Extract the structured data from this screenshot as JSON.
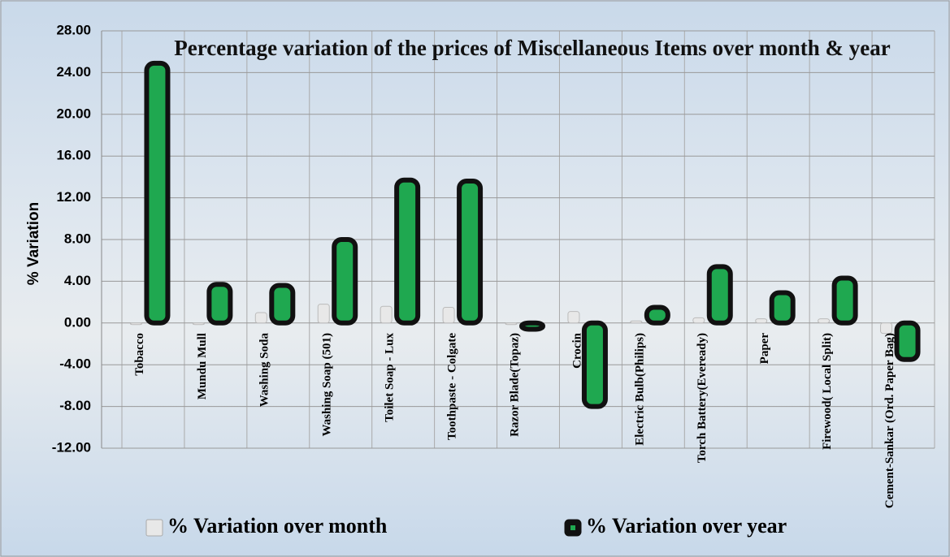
{
  "chart_data": {
    "type": "bar",
    "title": "Percentage variation of the prices of Miscellaneous Items over month & year",
    "y_label": "% Variation",
    "categories": [
      "Tobacco",
      "Mundu Mull",
      "Washing Soda",
      "Washing Soap (501)",
      "Toilet Soap - Lux",
      "Toothpaste - Colgate",
      "Razor Blade(Topaz)",
      "Crocin",
      "Electric Bulb(Philips)",
      "Torch Battery(Eveready)",
      "Paper",
      "Firewood( Local Split)",
      "Cement-Sankar (Ord. Paper Bag)"
    ],
    "series": [
      {
        "name": "% Variation over month",
        "color": "#e8e8e8",
        "values": [
          0,
          0,
          1.0,
          1.8,
          1.6,
          1.5,
          0,
          1.1,
          0.2,
          0.5,
          0.4,
          0.4,
          -1.0
        ]
      },
      {
        "name": "% Variation over year",
        "color": "#1fa850",
        "values": [
          24.9,
          3.7,
          3.6,
          8.0,
          13.7,
          13.6,
          -0.6,
          -8.0,
          1.5,
          5.4,
          2.9,
          4.3,
          -3.5
        ]
      }
    ],
    "ylim": [
      -12,
      28
    ],
    "yticks": [
      {
        "value": -12,
        "label": "-12.00"
      },
      {
        "value": -8,
        "label": "-8.00"
      },
      {
        "value": -4,
        "label": "-4.00"
      },
      {
        "value": 0,
        "label": "0.00"
      },
      {
        "value": 4,
        "label": "4.00"
      },
      {
        "value": 8,
        "label": "8.00"
      },
      {
        "value": 12,
        "label": "12.00"
      },
      {
        "value": 16,
        "label": "16.00"
      },
      {
        "value": 20,
        "label": "20.00"
      },
      {
        "value": 24,
        "label": "24.00"
      },
      {
        "value": 28,
        "label": "28.00"
      }
    ],
    "grid": true
  }
}
